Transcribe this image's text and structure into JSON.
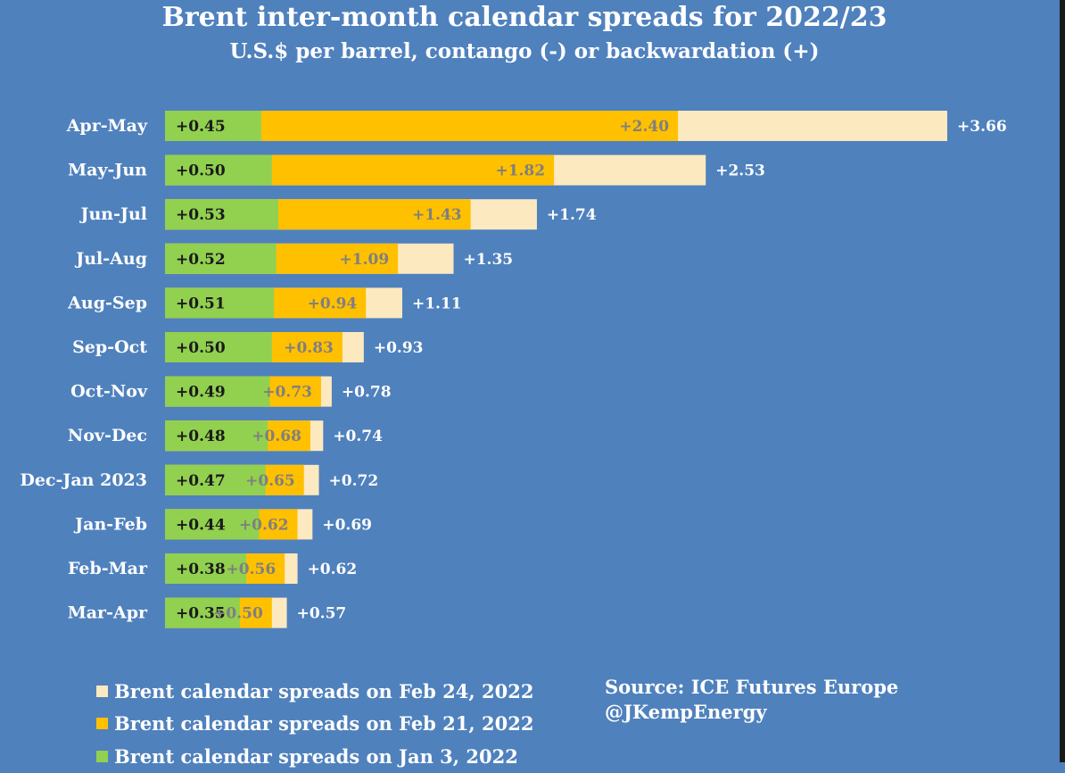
{
  "colors": {
    "background": "#4f81bd",
    "feb24": "#fde9c0",
    "feb21": "#ffc000",
    "jan3": "#92d050"
  },
  "chart_data": {
    "type": "bar",
    "orientation": "horizontal",
    "title": "Brent inter-month calendar spreads for 2022/23",
    "subtitle": "U.S.$ per barrel, contango (-) or backwardation (+)",
    "categories": [
      "Apr-May",
      "May-Jun",
      "Jun-Jul",
      "Jul-Aug",
      "Aug-Sep",
      "Sep-Oct",
      "Oct-Nov",
      "Nov-Dec",
      "Dec-Jan 2023",
      "Jan-Feb",
      "Feb-Mar",
      "Mar-Apr"
    ],
    "series": [
      {
        "name": "Brent calendar spreads on Feb 24, 2022",
        "values": [
          3.66,
          2.53,
          1.74,
          1.35,
          1.11,
          0.93,
          0.78,
          0.74,
          0.72,
          0.69,
          0.62,
          0.57
        ],
        "labels": [
          "+3.66",
          "+2.53",
          "+1.74",
          "+1.35",
          "+1.11",
          "+0.93",
          "+0.78",
          "+0.74",
          "+0.72",
          "+0.69",
          "+0.62",
          "+0.57"
        ]
      },
      {
        "name": "Brent calendar spreads on Feb 21, 2022",
        "values": [
          2.4,
          1.82,
          1.43,
          1.09,
          0.94,
          0.83,
          0.73,
          0.68,
          0.65,
          0.62,
          0.56,
          0.5
        ],
        "labels": [
          "+2.40",
          "+1.82",
          "+1.43",
          "+1.09",
          "+0.94",
          "+0.83",
          "+0.73",
          "+0.68",
          "+0.65",
          "+0.62",
          "+0.56",
          "+0.50"
        ]
      },
      {
        "name": "Brent calendar spreads on Jan 3, 2022",
        "values": [
          0.45,
          0.5,
          0.53,
          0.52,
          0.51,
          0.5,
          0.49,
          0.48,
          0.47,
          0.44,
          0.38,
          0.35
        ],
        "labels": [
          "+0.45",
          "+0.50",
          "+0.53",
          "+0.52",
          "+0.51",
          "+0.50",
          "+0.49",
          "+0.48",
          "+0.47",
          "+0.44",
          "+0.38",
          "+0.35"
        ]
      }
    ],
    "xlim": [
      0,
      3.66
    ],
    "grid": false,
    "legend": "bottom-left"
  },
  "source": {
    "line1": "Source: ICE Futures Europe",
    "line2": "@JKempEnergy"
  }
}
